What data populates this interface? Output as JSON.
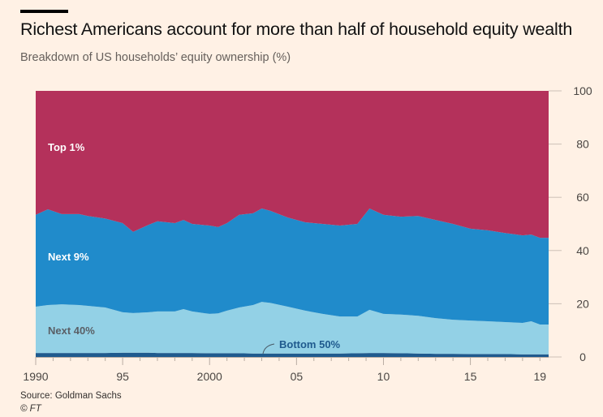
{
  "header": {
    "title": "Richest Americans account for more than half of household equity wealth",
    "subtitle": "Breakdown of US households’ equity ownership (%)"
  },
  "footer": {
    "source": "Source: Goldman Sachs",
    "copyright": "© FT"
  },
  "chart_data": {
    "type": "area",
    "stacked": true,
    "title": "Richest Americans account for more than half of household equity wealth",
    "subtitle": "Breakdown of US households’ equity ownership (%)",
    "xlabel": "",
    "ylabel": "",
    "xlim": [
      1990,
      2019.5
    ],
    "ylim": [
      0,
      100
    ],
    "x_ticks": [
      1990,
      1995,
      2000,
      2005,
      2010,
      2015,
      2019
    ],
    "x_tick_labels": [
      "1990",
      "95",
      "2000",
      "05",
      "10",
      "15",
      "19"
    ],
    "y_ticks": [
      0,
      20,
      40,
      60,
      80,
      100
    ],
    "y_tick_labels": [
      "0",
      "20",
      "40",
      "60",
      "80",
      "100"
    ],
    "y_axis_side": "right",
    "grid": false,
    "x": [
      1990,
      1990.7,
      1991.5,
      1992.5,
      1993,
      1994,
      1995,
      1995.6,
      1996.5,
      1997,
      1998,
      1998.5,
      1999,
      2000,
      2000.5,
      2001,
      2001.7,
      2002.5,
      2003,
      2003.5,
      2004.5,
      2005.5,
      2006.5,
      2007.5,
      2008.5,
      2009.2,
      2010,
      2011,
      2012,
      2013,
      2014,
      2015,
      2016,
      2017,
      2018,
      2018.5,
      2019,
      2019.5
    ],
    "series": [
      {
        "name": "Bottom 50%",
        "color": "#1f5a8e",
        "values": [
          1.5,
          1.5,
          1.5,
          1.5,
          1.5,
          1.5,
          1.6,
          1.6,
          1.6,
          1.5,
          1.5,
          1.5,
          1.5,
          1.4,
          1.4,
          1.4,
          1.4,
          1.3,
          1.3,
          1.3,
          1.3,
          1.3,
          1.3,
          1.3,
          1.4,
          1.5,
          1.5,
          1.4,
          1.3,
          1.2,
          1.2,
          1.1,
          1.1,
          1.1,
          1.0,
          1.0,
          1.0,
          1.0
        ]
      },
      {
        "name": "Next 40%",
        "color": "#93d1e6",
        "values": [
          17.4,
          18.0,
          18.3,
          18.0,
          17.7,
          17.1,
          15.2,
          14.9,
          15.2,
          15.6,
          15.6,
          16.5,
          15.6,
          14.8,
          15.0,
          16.0,
          17.2,
          18.2,
          19.4,
          19.0,
          17.6,
          16.1,
          14.9,
          13.9,
          13.8,
          16.2,
          14.7,
          14.5,
          14.2,
          13.4,
          12.8,
          12.6,
          12.3,
          12.0,
          11.8,
          12.4,
          11.2,
          11.2
        ]
      },
      {
        "name": "Next 9%",
        "color": "#208bcb",
        "values": [
          34.5,
          36.0,
          33.9,
          34.2,
          33.8,
          33.4,
          33.5,
          30.5,
          32.9,
          33.9,
          33.2,
          33.5,
          32.9,
          33.2,
          32.4,
          32.9,
          34.8,
          34.5,
          35.1,
          34.6,
          33.5,
          33.2,
          33.8,
          34.2,
          34.8,
          38.1,
          37.2,
          36.8,
          37.5,
          36.9,
          36.0,
          34.5,
          34.2,
          33.5,
          32.9,
          32.6,
          32.6,
          32.6
        ]
      },
      {
        "name": "Top 1%",
        "color": "#b4315b",
        "values": [
          46.6,
          44.5,
          46.3,
          46.3,
          47.0,
          48.0,
          49.7,
          53.0,
          50.3,
          49.0,
          49.7,
          48.5,
          50.0,
          50.6,
          51.2,
          49.7,
          46.6,
          46.0,
          44.2,
          45.1,
          47.6,
          49.4,
          50.0,
          50.6,
          50.0,
          44.2,
          46.6,
          47.3,
          47.0,
          48.5,
          50.0,
          51.8,
          52.4,
          53.4,
          54.3,
          54.0,
          55.2,
          55.2
        ]
      }
    ],
    "series_labels": [
      "Top 1%",
      "Next 9%",
      "Next 40%",
      "Bottom 50%"
    ],
    "annotation": "Bottom 50%"
  }
}
